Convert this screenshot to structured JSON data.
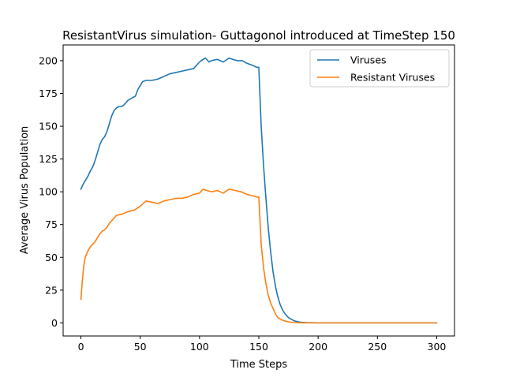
{
  "chart_data": {
    "type": "line",
    "title": "ResistantVirus simulation- Guttagonol introduced at TimeStep 150",
    "xlabel": "Time Steps",
    "ylabel": "Average Virus Population",
    "xlim": [
      -15,
      315
    ],
    "ylim": [
      -10,
      212
    ],
    "xticks": [
      0,
      50,
      100,
      150,
      200,
      250,
      300
    ],
    "yticks": [
      0,
      25,
      50,
      75,
      100,
      125,
      150,
      175,
      200
    ],
    "grid": false,
    "legend_position": "top-right",
    "series": [
      {
        "name": "Viruses",
        "color": "#1f77b4",
        "x": [
          0,
          2,
          4,
          6,
          8,
          10,
          12,
          14,
          16,
          18,
          20,
          22,
          24,
          26,
          28,
          30,
          32,
          34,
          36,
          38,
          40,
          42,
          44,
          46,
          48,
          50,
          52,
          55,
          60,
          65,
          70,
          75,
          80,
          85,
          90,
          95,
          100,
          103,
          105,
          108,
          110,
          115,
          120,
          125,
          128,
          132,
          136,
          140,
          143,
          146,
          148,
          150,
          152,
          154,
          156,
          158,
          160,
          162,
          164,
          166,
          168,
          170,
          172,
          175,
          180,
          185,
          190,
          195,
          200,
          250,
          300
        ],
        "values": [
          102,
          106,
          109,
          112,
          116,
          119,
          124,
          130,
          136,
          140,
          142,
          146,
          152,
          158,
          162,
          164,
          165,
          165,
          166,
          168,
          170,
          171,
          172,
          173,
          178,
          181,
          184,
          185,
          185,
          186,
          188,
          190,
          191,
          192,
          193,
          194,
          199,
          201,
          202,
          199,
          200,
          201,
          199,
          202,
          201,
          200,
          200,
          198,
          197,
          196,
          195,
          195,
          150,
          120,
          95,
          72,
          54,
          39,
          28,
          20,
          14,
          10,
          7,
          4,
          1.5,
          0.5,
          0.2,
          0.1,
          0,
          0,
          0
        ]
      },
      {
        "name": "Resistant Viruses",
        "color": "#ff7f0e",
        "x": [
          0,
          1,
          2,
          3,
          4,
          6,
          8,
          10,
          12,
          14,
          16,
          18,
          20,
          22,
          24,
          26,
          28,
          30,
          35,
          40,
          45,
          50,
          55,
          60,
          65,
          70,
          75,
          80,
          85,
          90,
          95,
          100,
          103,
          106,
          110,
          115,
          120,
          125,
          130,
          135,
          140,
          145,
          148,
          150,
          152,
          154,
          156,
          158,
          160,
          162,
          164,
          166,
          168,
          170,
          173,
          176,
          180,
          185,
          190,
          200,
          250,
          300
        ],
        "values": [
          18,
          30,
          40,
          47,
          51,
          55,
          58,
          60,
          62,
          65,
          68,
          70,
          71,
          73,
          76,
          78,
          80,
          82,
          83,
          85,
          86,
          89,
          93,
          92,
          91,
          93,
          94,
          95,
          95,
          96,
          98,
          99,
          102,
          101,
          100,
          101,
          99,
          102,
          101,
          100,
          98,
          97,
          96,
          96,
          60,
          42,
          30,
          21,
          15,
          11,
          7,
          4,
          3,
          2,
          1.2,
          0.6,
          0.3,
          0.1,
          0,
          0,
          0,
          0
        ]
      }
    ]
  }
}
